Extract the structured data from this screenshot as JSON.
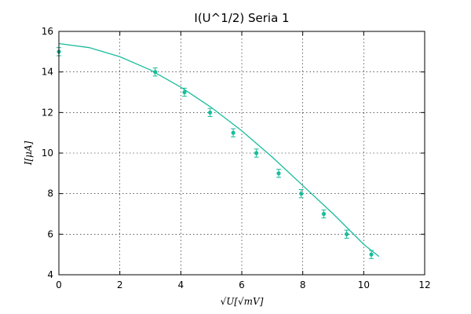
{
  "chart_data": {
    "type": "scatter",
    "title": "I(U^1/2) Seria 1",
    "xlabel": "√U[√mV]",
    "ylabel": "I[μA]",
    "xlim": [
      0,
      12
    ],
    "ylim": [
      4,
      16
    ],
    "x_ticks": [
      0,
      2,
      4,
      6,
      8,
      10,
      12
    ],
    "y_ticks": [
      4,
      6,
      8,
      10,
      12,
      14,
      16
    ],
    "grid": true,
    "series": [
      {
        "type": "scatter",
        "color": "#1abc9c",
        "x": [
          0,
          3.16,
          4.12,
          4.96,
          5.72,
          6.48,
          7.21,
          7.95,
          8.69,
          9.44,
          10.25
        ],
        "y": [
          15.0,
          14.0,
          13.0,
          12.0,
          11.0,
          10.0,
          9.0,
          8.0,
          7.0,
          6.0,
          5.0
        ],
        "yerr": 0.2
      },
      {
        "type": "line",
        "color": "#1abc9c",
        "x": [
          0,
          1,
          2,
          3,
          4,
          5,
          6,
          7,
          8,
          9,
          10,
          10.5
        ],
        "y": [
          15.4,
          15.2,
          14.75,
          14.1,
          13.25,
          12.25,
          11.1,
          9.8,
          8.4,
          7.0,
          5.5,
          4.9
        ]
      }
    ]
  }
}
